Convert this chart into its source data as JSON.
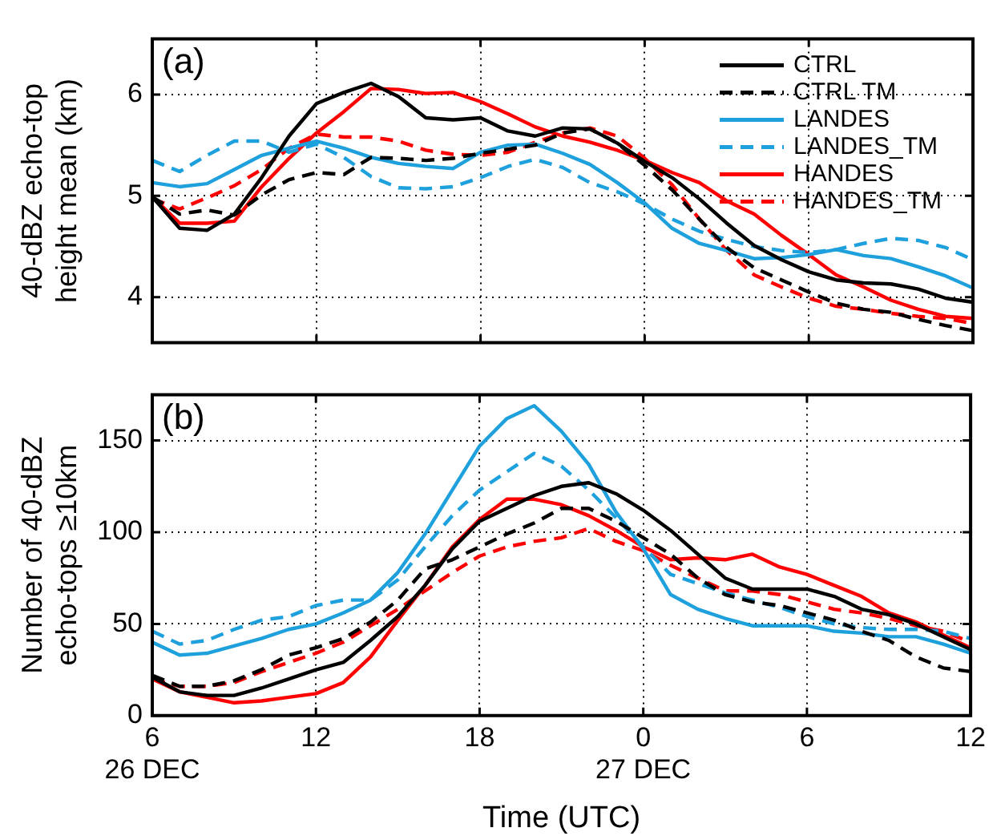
{
  "chart_data": [
    {
      "type": "line",
      "title": "(a)",
      "ylabel": "40-dBZ echo-top height mean (km)",
      "x": [
        "--12-26T06:00",
        "--12-26T07:00",
        "--12-26T08:00",
        "--12-26T09:00",
        "--12-26T10:00",
        "--12-26T11:00",
        "--12-26T12:00",
        "--12-26T13:00",
        "--12-26T14:00",
        "--12-26T15:00",
        "--12-26T16:00",
        "--12-26T17:00",
        "--12-26T18:00",
        "--12-26T19:00",
        "--12-26T20:00",
        "--12-26T21:00",
        "--12-26T22:00",
        "--12-26T23:00",
        "--12-27T00:00",
        "--12-27T01:00",
        "--12-27T02:00",
        "--12-27T03:00",
        "--12-27T04:00",
        "--12-27T05:00",
        "--12-27T06:00",
        "--12-27T07:00",
        "--12-27T08:00",
        "--12-27T09:00",
        "--12-27T10:00",
        "--12-27T11:00",
        "--12-27T12:00"
      ],
      "xlim": [
        "--12-26T06:00",
        "--12-27T12:00"
      ],
      "xticks": [
        "--12-26T06:00",
        "--12-26T12:00",
        "--12-26T18:00",
        "--12-27T00:00",
        "--12-27T06:00",
        "--12-27T12:00"
      ],
      "ylim": [
        3.55,
        6.55
      ],
      "yticks": [
        4,
        5,
        6
      ],
      "grid": true,
      "legend": "top right",
      "tick_labels": "y",
      "series": [
        {
          "name": "CTRL",
          "color": "#000000",
          "line_style": "solid",
          "values": [
            4.99,
            4.68,
            4.66,
            4.82,
            5.18,
            5.59,
            5.91,
            6.02,
            6.11,
            5.98,
            5.77,
            5.75,
            5.77,
            5.64,
            5.59,
            5.67,
            5.66,
            5.52,
            5.34,
            5.18,
            4.97,
            4.73,
            4.51,
            4.37,
            4.25,
            4.17,
            4.14,
            4.13,
            4.08,
            3.99,
            3.95
          ]
        },
        {
          "name": "CTRL TM",
          "color": "#000000",
          "line_style": "dashed",
          "values": [
            4.99,
            4.82,
            4.86,
            4.81,
            5.01,
            5.16,
            5.23,
            5.21,
            5.38,
            5.37,
            5.35,
            5.37,
            5.42,
            5.46,
            5.5,
            5.62,
            5.66,
            5.52,
            5.3,
            5.06,
            4.77,
            4.49,
            4.29,
            4.17,
            4.05,
            3.94,
            3.88,
            3.85,
            3.78,
            3.72,
            3.67
          ]
        },
        {
          "name": "LANDES",
          "color": "#1ea0dc",
          "line_style": "solid",
          "values": [
            5.13,
            5.09,
            5.12,
            5.26,
            5.4,
            5.47,
            5.54,
            5.47,
            5.38,
            5.32,
            5.29,
            5.27,
            5.43,
            5.5,
            5.51,
            5.42,
            5.31,
            5.13,
            4.93,
            4.68,
            4.53,
            4.46,
            4.38,
            4.39,
            4.42,
            4.47,
            4.41,
            4.38,
            4.3,
            4.21,
            4.09
          ]
        },
        {
          "name": "LANDES_TM",
          "color": "#1ea0dc",
          "line_style": "dashed",
          "values": [
            5.35,
            5.24,
            5.4,
            5.54,
            5.54,
            5.43,
            5.51,
            5.38,
            5.19,
            5.08,
            5.07,
            5.09,
            5.18,
            5.29,
            5.36,
            5.28,
            5.13,
            5.04,
            4.92,
            4.77,
            4.65,
            4.57,
            4.5,
            4.46,
            4.44,
            4.47,
            4.53,
            4.58,
            4.56,
            4.49,
            4.37
          ]
        },
        {
          "name": "HANDES",
          "color": "#ff0000",
          "line_style": "solid",
          "values": [
            4.99,
            4.73,
            4.73,
            4.75,
            5.09,
            5.37,
            5.62,
            5.83,
            6.06,
            6.05,
            6.01,
            6.02,
            5.93,
            5.81,
            5.68,
            5.59,
            5.53,
            5.45,
            5.35,
            5.23,
            5.13,
            4.95,
            4.82,
            4.61,
            4.42,
            4.22,
            4.1,
            3.97,
            3.88,
            3.81,
            3.79
          ]
        },
        {
          "name": "HANDES_TM",
          "color": "#ff0000",
          "line_style": "dashed",
          "values": [
            4.97,
            4.87,
            4.98,
            5.1,
            5.26,
            5.47,
            5.61,
            5.58,
            5.58,
            5.54,
            5.45,
            5.41,
            5.4,
            5.43,
            5.53,
            5.62,
            5.67,
            5.59,
            5.37,
            5.11,
            4.77,
            4.46,
            4.22,
            4.1,
            3.99,
            3.91,
            3.88,
            3.84,
            3.81,
            3.79,
            3.74
          ]
        }
      ]
    },
    {
      "type": "line",
      "title": "(b)",
      "ylabel": "Number of 40-dBZ echo-tops ≥10km",
      "xlabel": "Time (UTC)",
      "x": [
        "--12-26T06:00",
        "--12-26T07:00",
        "--12-26T08:00",
        "--12-26T09:00",
        "--12-26T10:00",
        "--12-26T11:00",
        "--12-26T12:00",
        "--12-26T13:00",
        "--12-26T14:00",
        "--12-26T15:00",
        "--12-26T16:00",
        "--12-26T17:00",
        "--12-26T18:00",
        "--12-26T19:00",
        "--12-26T20:00",
        "--12-26T21:00",
        "--12-26T22:00",
        "--12-26T23:00",
        "--12-27T00:00",
        "--12-27T01:00",
        "--12-27T02:00",
        "--12-27T03:00",
        "--12-27T04:00",
        "--12-27T05:00",
        "--12-27T06:00",
        "--12-27T07:00",
        "--12-27T08:00",
        "--12-27T09:00",
        "--12-27T10:00",
        "--12-27T11:00",
        "--12-27T12:00"
      ],
      "xlim": [
        "--12-26T06:00",
        "--12-27T12:00"
      ],
      "xticks": [
        {
          "value": "--12-26T06:00",
          "label": "6\n26 DEC"
        },
        {
          "value": "--12-26T12:00",
          "label": "12"
        },
        {
          "value": "--12-26T18:00",
          "label": "18"
        },
        {
          "value": "--12-27T00:00",
          "label": "0\n27 DEC"
        },
        {
          "value": "--12-27T06:00",
          "label": "6"
        },
        {
          "value": "--12-27T12:00",
          "label": "12"
        }
      ],
      "ylim": [
        0,
        175
      ],
      "yticks": [
        0,
        50,
        100,
        150
      ],
      "grid": true,
      "series": [
        {
          "color": "#000000",
          "line_style": "solid",
          "values": [
            21,
            13,
            11,
            11,
            15,
            20,
            25,
            29,
            41,
            54,
            71,
            91,
            106,
            113,
            120,
            125,
            127,
            121,
            112,
            101,
            88,
            75,
            69,
            69,
            69,
            65,
            58,
            55,
            50,
            43,
            36
          ]
        },
        {
          "color": "#000000",
          "line_style": "dashed",
          "values": [
            22,
            16,
            16,
            19,
            25,
            33,
            37,
            42,
            51,
            63,
            80,
            85,
            92,
            99,
            105,
            113,
            113,
            106,
            97,
            88,
            75,
            66,
            62,
            60,
            56,
            52,
            46,
            41,
            32,
            26,
            24
          ]
        },
        {
          "color": "#1ea0dc",
          "line_style": "solid",
          "values": [
            40,
            33,
            34,
            38,
            42,
            47,
            50,
            56,
            63,
            78,
            99,
            123,
            147,
            162,
            169,
            155,
            137,
            111,
            91,
            66,
            58,
            53,
            49,
            49,
            49,
            46,
            45,
            43,
            43,
            39,
            34
          ]
        },
        {
          "color": "#1ea0dc",
          "line_style": "dashed",
          "values": [
            46,
            39,
            41,
            47,
            52,
            54,
            60,
            63,
            63,
            74,
            92,
            109,
            123,
            133,
            143,
            136,
            123,
            108,
            92,
            77,
            72,
            67,
            63,
            59,
            54,
            50,
            48,
            47,
            47,
            46,
            42
          ]
        },
        {
          "color": "#ff0000",
          "line_style": "solid",
          "values": [
            20,
            13,
            10,
            7,
            8,
            10,
            12,
            18,
            32,
            52,
            71,
            92,
            107,
            118,
            118,
            115,
            109,
            101,
            92,
            85,
            86,
            85,
            88,
            81,
            77,
            71,
            65,
            56,
            51,
            44,
            37
          ]
        },
        {
          "color": "#ff0000",
          "line_style": "dashed",
          "values": [
            20,
            16,
            16,
            18,
            24,
            29,
            34,
            40,
            49,
            58,
            68,
            78,
            87,
            92,
            95,
            97,
            102,
            95,
            90,
            82,
            75,
            68,
            68,
            66,
            62,
            58,
            56,
            53,
            49,
            46,
            40
          ]
        }
      ]
    }
  ]
}
